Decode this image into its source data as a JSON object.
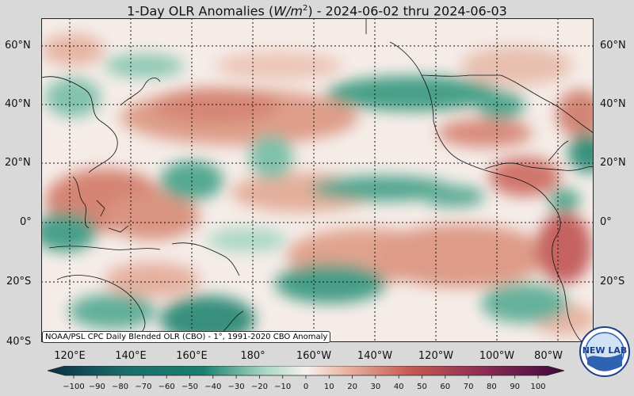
{
  "title": {
    "prefix": "1-Day OLR Anomalies (",
    "unit_base": "W/m",
    "unit_exp": "2",
    "suffix": ") - 2024-06-02 thru 2024-06-03"
  },
  "credit": "NOAA/PSL CPC Daily Blended OLR (CBO) - 1°, 1991-2020 CBO Anomaly",
  "lat_labels": [
    "60°N",
    "40°N",
    "20°N",
    "0°",
    "20°S",
    "40°S"
  ],
  "lon_labels": [
    "120°E",
    "140°E",
    "160°E",
    "180°",
    "160°W",
    "140°W",
    "120°W",
    "100°W",
    "80°W"
  ],
  "colorbar": {
    "ticks": [
      "−100",
      "−90",
      "−80",
      "−70",
      "−60",
      "−50",
      "−40",
      "−30",
      "−20",
      "−10",
      "0",
      "10",
      "20",
      "30",
      "40",
      "50",
      "60",
      "70",
      "80",
      "90",
      "100"
    ]
  },
  "colors": {
    "negative_dark": "#0b2e45",
    "negative_mid": "#1a7f6e",
    "negative_light": "#a8d8c4",
    "neutral": "#f7f1ee",
    "positive_light": "#e9b3a0",
    "positive_mid": "#c65a52",
    "positive_dark": "#3c0a3a"
  },
  "logo": {
    "text": "NEW LAB",
    "icon": "noaa-logo-icon"
  }
}
